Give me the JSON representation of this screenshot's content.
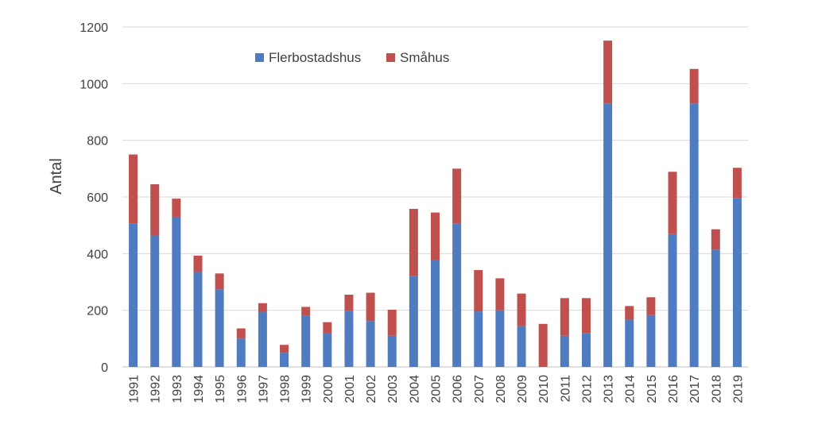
{
  "chart_data": {
    "type": "bar",
    "stacked": true,
    "title": "",
    "xlabel": "",
    "ylabel": "Antal",
    "ylim": [
      0,
      1200
    ],
    "yticks": [
      0,
      200,
      400,
      600,
      800,
      1000,
      1200
    ],
    "legend_position": "top-center",
    "grid": true,
    "categories": [
      "1991",
      "1992",
      "1993",
      "1994",
      "1995",
      "1996",
      "1997",
      "1998",
      "1999",
      "2000",
      "2001",
      "2002",
      "2003",
      "2004",
      "2005",
      "2006",
      "2007",
      "2008",
      "2009",
      "2010",
      "2011",
      "2012",
      "2013",
      "2014",
      "2015",
      "2016",
      "2017",
      "2018",
      "2019"
    ],
    "series": [
      {
        "name": "Flerbostadshus",
        "color": "#4f7cc0",
        "values": [
          507,
          464,
          530,
          335,
          274,
          100,
          195,
          50,
          182,
          118,
          197,
          162,
          110,
          322,
          377,
          507,
          196,
          200,
          144,
          0,
          110,
          120,
          930,
          167,
          183,
          469,
          930,
          414,
          595
        ]
      },
      {
        "name": "Småhus",
        "color": "#c0504d",
        "values": [
          243,
          181,
          64,
          58,
          56,
          36,
          30,
          28,
          30,
          40,
          58,
          100,
          92,
          236,
          168,
          193,
          146,
          113,
          115,
          152,
          133,
          123,
          222,
          48,
          63,
          220,
          122,
          72,
          108
        ]
      }
    ]
  }
}
